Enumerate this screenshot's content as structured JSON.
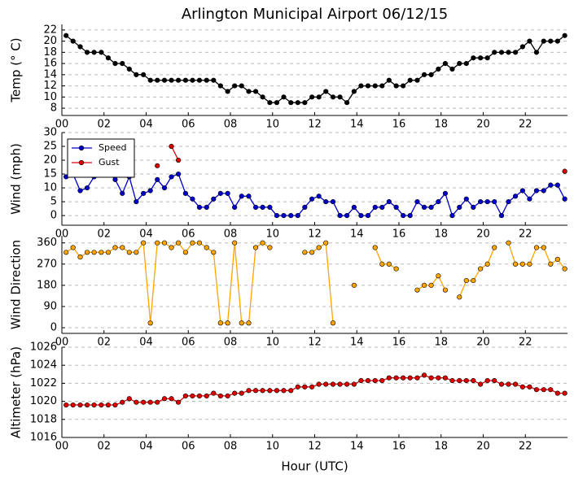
{
  "chart_data": [
    {
      "type": "line",
      "title": "Arlington Municipal Airport 06/12/15",
      "ylabel": "Temp (° C)",
      "x": [
        0.2,
        0.53,
        0.87,
        1.2,
        1.53,
        1.87,
        2.2,
        2.53,
        2.87,
        3.2,
        3.53,
        3.87,
        4.2,
        4.53,
        4.87,
        5.2,
        5.53,
        5.87,
        6.2,
        6.53,
        6.87,
        7.2,
        7.53,
        7.87,
        8.2,
        8.53,
        8.87,
        9.2,
        9.53,
        9.87,
        10.2,
        10.53,
        10.87,
        11.2,
        11.53,
        11.87,
        12.2,
        12.53,
        12.87,
        13.2,
        13.53,
        13.87,
        14.2,
        14.53,
        14.87,
        15.2,
        15.53,
        15.87,
        16.2,
        16.53,
        16.87,
        17.2,
        17.53,
        17.87,
        18.2,
        18.53,
        18.87,
        19.2,
        19.53,
        19.87,
        20.2,
        20.53,
        20.87,
        21.2,
        21.53,
        21.87,
        22.2,
        22.53,
        22.87,
        23.2,
        23.53,
        23.87
      ],
      "series": [
        {
          "name": "Temp",
          "color": "#000000",
          "values": [
            21,
            20,
            19,
            18,
            18,
            18,
            17,
            16,
            16,
            15,
            14,
            14,
            13,
            13,
            13,
            13,
            13,
            13,
            13,
            13,
            13,
            13,
            12,
            11,
            12,
            12,
            11,
            11,
            10,
            9,
            9,
            10,
            9,
            9,
            9,
            10,
            10,
            11,
            10,
            10,
            9,
            11,
            12,
            12,
            12,
            12,
            13,
            12,
            12,
            13,
            13,
            14,
            14,
            15,
            16,
            15,
            16,
            16,
            17,
            17,
            17,
            18,
            18,
            18,
            18,
            19,
            20,
            18,
            20,
            20,
            20,
            21
          ]
        }
      ],
      "xlim": [
        0,
        24
      ],
      "xticks": [
        {
          "value": 0,
          "label": "00"
        },
        {
          "value": 2,
          "label": "02"
        },
        {
          "value": 4,
          "label": "04"
        },
        {
          "value": 6,
          "label": "06"
        },
        {
          "value": 8,
          "label": "08"
        },
        {
          "value": 10,
          "label": "10"
        },
        {
          "value": 12,
          "label": "12"
        },
        {
          "value": 14,
          "label": "14"
        },
        {
          "value": 16,
          "label": "16"
        },
        {
          "value": 18,
          "label": "18"
        },
        {
          "value": 20,
          "label": "20"
        },
        {
          "value": 22,
          "label": "22"
        }
      ],
      "ylim": [
        6.7,
        23
      ],
      "yticks": [
        8,
        10,
        12,
        14,
        16,
        18,
        20,
        22
      ],
      "grid": true
    },
    {
      "type": "line",
      "ylabel": "Wind (mph)",
      "legend": "upper left",
      "x": [
        0.2,
        0.53,
        0.87,
        1.2,
        1.53,
        1.87,
        2.2,
        2.53,
        2.87,
        3.2,
        3.53,
        3.87,
        4.2,
        4.53,
        4.87,
        5.2,
        5.53,
        5.87,
        6.2,
        6.53,
        6.87,
        7.2,
        7.53,
        7.87,
        8.2,
        8.53,
        8.87,
        9.2,
        9.53,
        9.87,
        10.2,
        10.53,
        10.87,
        11.2,
        11.53,
        11.87,
        12.2,
        12.53,
        12.87,
        13.2,
        13.53,
        13.87,
        14.2,
        14.53,
        14.87,
        15.2,
        15.53,
        15.87,
        16.2,
        16.53,
        16.87,
        17.2,
        17.53,
        17.87,
        18.2,
        18.53,
        18.87,
        19.2,
        19.53,
        19.87,
        20.2,
        20.53,
        20.87,
        21.2,
        21.53,
        21.87,
        22.2,
        22.53,
        22.87,
        23.2,
        23.53,
        23.87
      ],
      "series": [
        {
          "name": "Speed",
          "color": "#0000cc",
          "values": [
            14,
            15,
            9,
            10,
            14,
            15,
            16,
            13,
            8,
            14,
            5,
            8,
            9,
            13,
            10,
            14,
            15,
            8,
            6,
            3,
            3,
            6,
            8,
            8,
            3,
            7,
            7,
            3,
            3,
            3,
            0,
            0,
            0,
            0,
            3,
            6,
            7,
            5,
            5,
            0,
            0,
            3,
            0,
            0,
            3,
            3,
            5,
            3,
            0,
            0,
            5,
            3,
            3,
            5,
            8,
            0,
            3,
            6,
            3,
            5,
            5,
            5,
            0,
            5,
            7,
            9,
            6,
            9,
            9,
            11,
            11,
            6
          ]
        },
        {
          "name": "Gust",
          "color": "#dd0000",
          "values": [
            null,
            null,
            null,
            null,
            null,
            null,
            null,
            null,
            null,
            null,
            null,
            null,
            null,
            18,
            null,
            25,
            20,
            null,
            null,
            null,
            null,
            null,
            null,
            null,
            null,
            null,
            null,
            null,
            null,
            null,
            null,
            null,
            null,
            null,
            null,
            null,
            null,
            null,
            null,
            null,
            null,
            null,
            null,
            null,
            null,
            null,
            null,
            null,
            null,
            null,
            null,
            null,
            null,
            null,
            null,
            null,
            null,
            null,
            null,
            null,
            null,
            null,
            null,
            null,
            null,
            null,
            null,
            null,
            null,
            null,
            null,
            16
          ]
        }
      ],
      "xlim": [
        0,
        24
      ],
      "xticks": [
        {
          "value": 0,
          "label": "00"
        },
        {
          "value": 2,
          "label": "02"
        },
        {
          "value": 4,
          "label": "04"
        },
        {
          "value": 6,
          "label": "06"
        },
        {
          "value": 8,
          "label": "08"
        },
        {
          "value": 10,
          "label": "10"
        },
        {
          "value": 12,
          "label": "12"
        },
        {
          "value": 14,
          "label": "14"
        },
        {
          "value": 16,
          "label": "16"
        },
        {
          "value": 18,
          "label": "18"
        },
        {
          "value": 20,
          "label": "20"
        },
        {
          "value": 22,
          "label": "22"
        }
      ],
      "ylim": [
        -3.5,
        30
      ],
      "yticks": [
        0,
        5,
        10,
        15,
        20,
        25,
        30
      ],
      "grid": true
    },
    {
      "type": "line",
      "ylabel": "Wind Direction",
      "x": [
        0.2,
        0.53,
        0.87,
        1.2,
        1.53,
        1.87,
        2.2,
        2.53,
        2.87,
        3.2,
        3.53,
        3.87,
        4.2,
        4.53,
        4.87,
        5.2,
        5.53,
        5.87,
        6.2,
        6.53,
        6.87,
        7.2,
        7.53,
        7.87,
        8.2,
        8.53,
        8.87,
        9.2,
        9.53,
        9.87,
        10.2,
        10.53,
        10.87,
        11.2,
        11.53,
        11.87,
        12.2,
        12.53,
        12.87,
        13.2,
        13.53,
        13.87,
        14.2,
        14.53,
        14.87,
        15.2,
        15.53,
        15.87,
        16.2,
        16.53,
        16.87,
        17.2,
        17.53,
        17.87,
        18.2,
        18.53,
        18.87,
        19.2,
        19.53,
        19.87,
        20.2,
        20.53,
        20.87,
        21.2,
        21.53,
        21.87,
        22.2,
        22.53,
        22.87,
        23.2,
        23.53,
        23.87
      ],
      "series": [
        {
          "name": "Direction",
          "color": "#ffa500",
          "values": [
            320,
            340,
            300,
            320,
            320,
            320,
            320,
            340,
            340,
            320,
            320,
            360,
            20,
            360,
            360,
            340,
            360,
            320,
            360,
            360,
            340,
            320,
            20,
            20,
            360,
            20,
            20,
            340,
            360,
            340,
            null,
            null,
            null,
            null,
            320,
            320,
            340,
            360,
            20,
            null,
            null,
            180,
            null,
            null,
            340,
            270,
            270,
            250,
            null,
            null,
            160,
            180,
            180,
            220,
            160,
            null,
            130,
            200,
            200,
            250,
            270,
            340,
            null,
            360,
            270,
            270,
            270,
            340,
            340,
            270,
            290,
            250
          ]
        }
      ],
      "xlim": [
        0,
        24
      ],
      "xticks": [
        {
          "value": 0,
          "label": "00"
        },
        {
          "value": 2,
          "label": "02"
        },
        {
          "value": 4,
          "label": "04"
        },
        {
          "value": 6,
          "label": "06"
        },
        {
          "value": 8,
          "label": "08"
        },
        {
          "value": 10,
          "label": "10"
        },
        {
          "value": 12,
          "label": "12"
        },
        {
          "value": 14,
          "label": "14"
        },
        {
          "value": 16,
          "label": "16"
        },
        {
          "value": 18,
          "label": "18"
        },
        {
          "value": 20,
          "label": "20"
        },
        {
          "value": 22,
          "label": "22"
        }
      ],
      "ylim": [
        -24,
        390
      ],
      "yticks": [
        0,
        90,
        180,
        270,
        360
      ],
      "grid": true
    },
    {
      "type": "line",
      "ylabel": "Altimeter (hPa)",
      "xlabel": "Hour (UTC)",
      "x": [
        0.2,
        0.53,
        0.87,
        1.2,
        1.53,
        1.87,
        2.2,
        2.53,
        2.87,
        3.2,
        3.53,
        3.87,
        4.2,
        4.53,
        4.87,
        5.2,
        5.53,
        5.87,
        6.2,
        6.53,
        6.87,
        7.2,
        7.53,
        7.87,
        8.2,
        8.53,
        8.87,
        9.2,
        9.53,
        9.87,
        10.2,
        10.53,
        10.87,
        11.2,
        11.53,
        11.87,
        12.2,
        12.53,
        12.87,
        13.2,
        13.53,
        13.87,
        14.2,
        14.53,
        14.87,
        15.2,
        15.53,
        15.87,
        16.2,
        16.53,
        16.87,
        17.2,
        17.53,
        17.87,
        18.2,
        18.53,
        18.87,
        19.2,
        19.53,
        19.87,
        20.2,
        20.53,
        20.87,
        21.2,
        21.53,
        21.87,
        22.2,
        22.53,
        22.87,
        23.2,
        23.53,
        23.87
      ],
      "series": [
        {
          "name": "Altimeter",
          "color": "#dd0000",
          "values": [
            1019.6,
            1019.6,
            1019.6,
            1019.6,
            1019.6,
            1019.6,
            1019.6,
            1019.6,
            1019.9,
            1020.3,
            1019.9,
            1019.9,
            1019.9,
            1019.9,
            1020.3,
            1020.3,
            1019.9,
            1020.6,
            1020.6,
            1020.6,
            1020.6,
            1020.9,
            1020.6,
            1020.6,
            1020.9,
            1020.9,
            1021.2,
            1021.2,
            1021.2,
            1021.2,
            1021.2,
            1021.2,
            1021.2,
            1021.6,
            1021.6,
            1021.6,
            1021.9,
            1021.9,
            1021.9,
            1021.9,
            1021.9,
            1021.9,
            1022.3,
            1022.3,
            1022.3,
            1022.3,
            1022.6,
            1022.6,
            1022.6,
            1022.6,
            1022.6,
            1022.9,
            1022.6,
            1022.6,
            1022.6,
            1022.3,
            1022.3,
            1022.3,
            1022.3,
            1021.9,
            1022.3,
            1022.3,
            1021.9,
            1021.9,
            1021.9,
            1021.6,
            1021.6,
            1021.3,
            1021.3,
            1021.3,
            1020.9,
            1020.9
          ]
        }
      ],
      "xlim": [
        0,
        24
      ],
      "xticks": [
        {
          "value": 0,
          "label": "00"
        },
        {
          "value": 2,
          "label": "02"
        },
        {
          "value": 4,
          "label": "04"
        },
        {
          "value": 6,
          "label": "06"
        },
        {
          "value": 8,
          "label": "08"
        },
        {
          "value": 10,
          "label": "10"
        },
        {
          "value": 12,
          "label": "12"
        },
        {
          "value": 14,
          "label": "14"
        },
        {
          "value": 16,
          "label": "16"
        },
        {
          "value": 18,
          "label": "18"
        },
        {
          "value": 20,
          "label": "20"
        },
        {
          "value": 22,
          "label": "22"
        }
      ],
      "ylim": [
        1016,
        1026
      ],
      "yticks": [
        1016,
        1018,
        1020,
        1022,
        1024,
        1026
      ],
      "grid": true
    }
  ]
}
